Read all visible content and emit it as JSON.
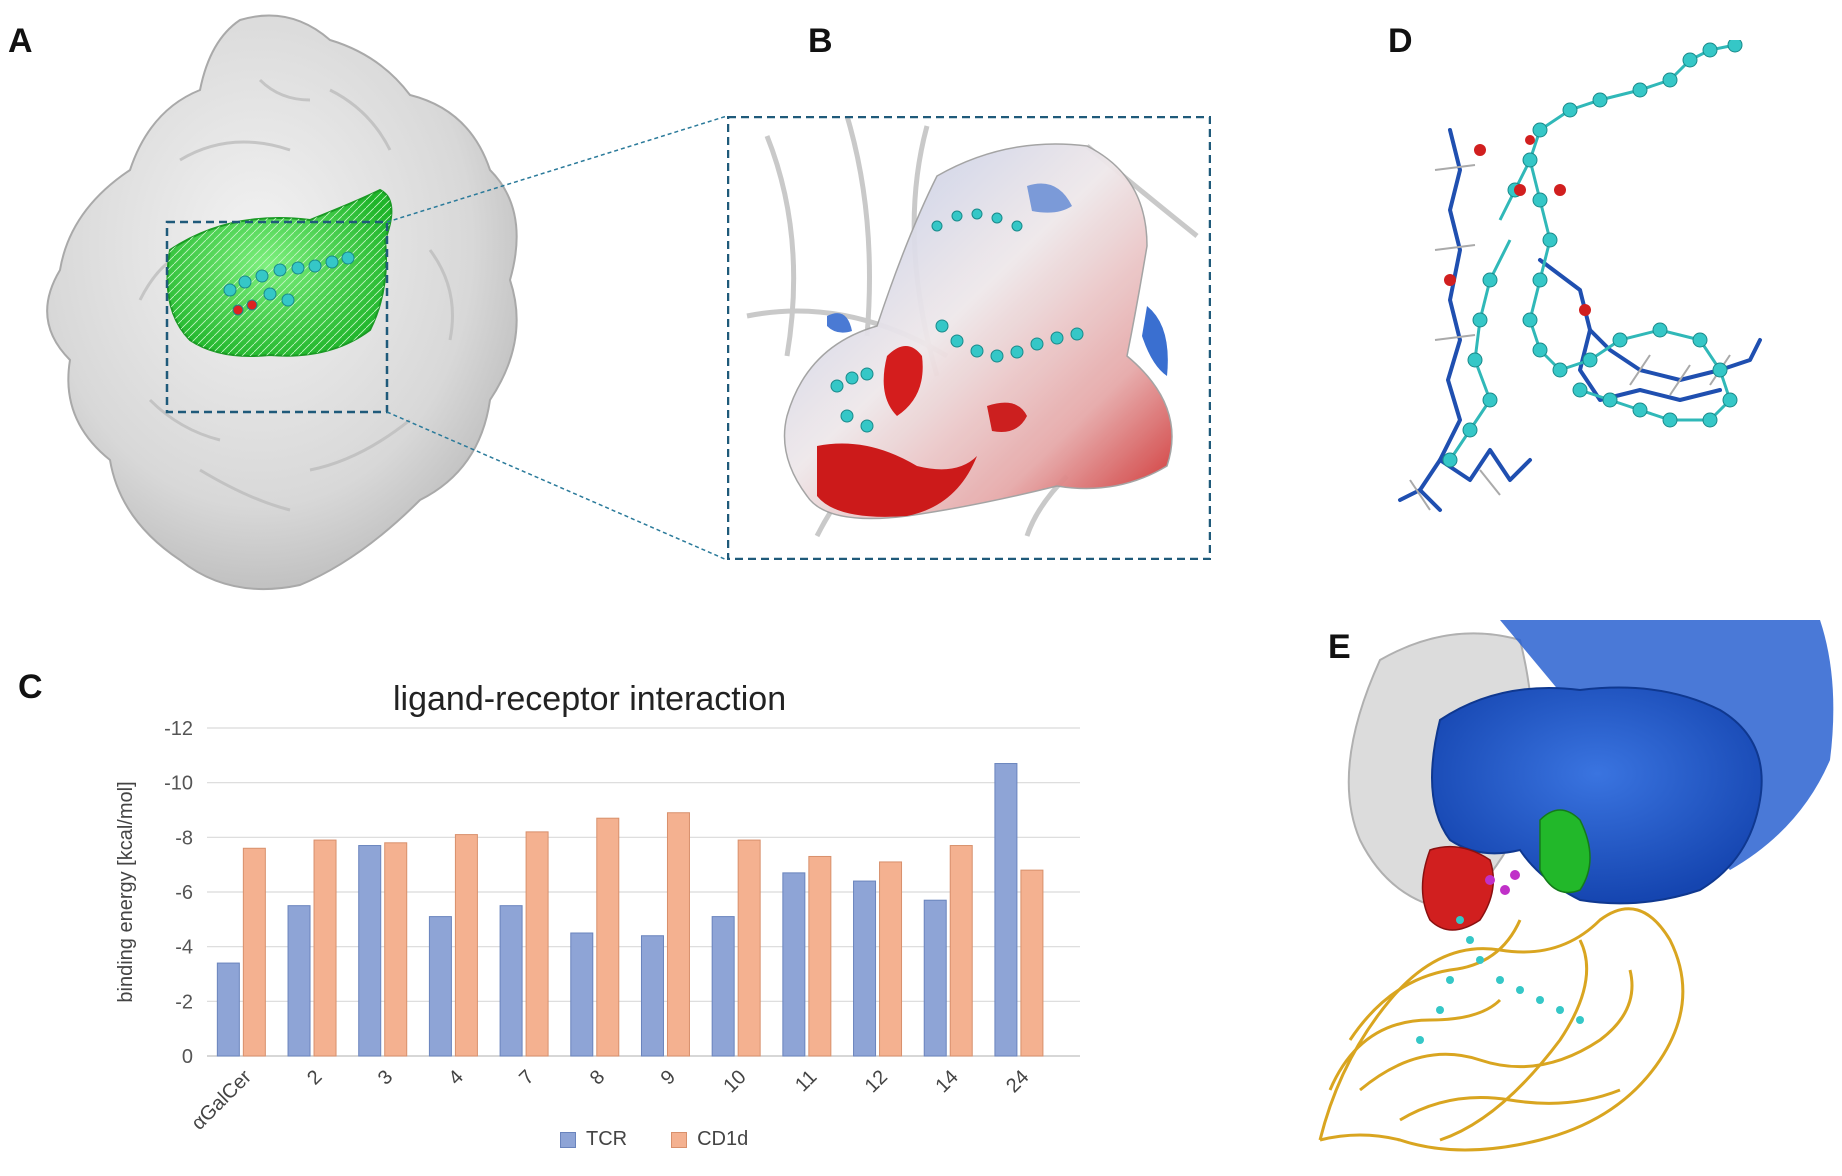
{
  "panels": {
    "a": {
      "label": "A"
    },
    "b": {
      "label": "B"
    },
    "c": {
      "label": "C"
    },
    "d": {
      "label": "D"
    },
    "e": {
      "label": "E"
    }
  },
  "colors": {
    "tcr": "#8ea4d6",
    "cd1d": "#f4b190",
    "surface_gray": "#dcdcdc",
    "pocket_green": "#2fd43a",
    "dashed_box": "#1f5a7a",
    "atom_cyan": "#35c7c7",
    "stick_blue": "#1f4fb0",
    "negative_red": "#d11f1f",
    "positive_blue": "#3a6fd0",
    "receptor_blue": "#1b4fc4",
    "ribbon_gold": "#d9a520",
    "ligand_magenta": "#c030c8"
  },
  "chart_data": {
    "type": "bar",
    "title": "ligand-receptor interaction",
    "ylabel": "binding energy [kcal/mol]",
    "xlabel": "",
    "categories": [
      "αGalCer",
      "2",
      "3",
      "4",
      "7",
      "8",
      "9",
      "10",
      "11",
      "12",
      "14",
      "24"
    ],
    "series": [
      {
        "name": "TCR",
        "values": [
          -3.4,
          -5.5,
          -7.7,
          -5.1,
          -5.5,
          -4.5,
          -4.4,
          -5.1,
          -6.7,
          -6.4,
          -5.7,
          -10.7
        ]
      },
      {
        "name": "CD1d",
        "values": [
          -7.6,
          -7.9,
          -7.8,
          -8.1,
          -8.2,
          -8.7,
          -8.9,
          -7.9,
          -7.3,
          -7.1,
          -7.7,
          -6.8
        ]
      }
    ],
    "ylim": [
      0,
      -12
    ],
    "yticks": [
      0,
      -2,
      -4,
      -6,
      -8,
      -10,
      -12
    ],
    "ytick_labels": [
      "0",
      "-2",
      "-4",
      "-6",
      "-8",
      "-10",
      "-12"
    ],
    "grid": true,
    "legend_position": "bottom-center"
  }
}
